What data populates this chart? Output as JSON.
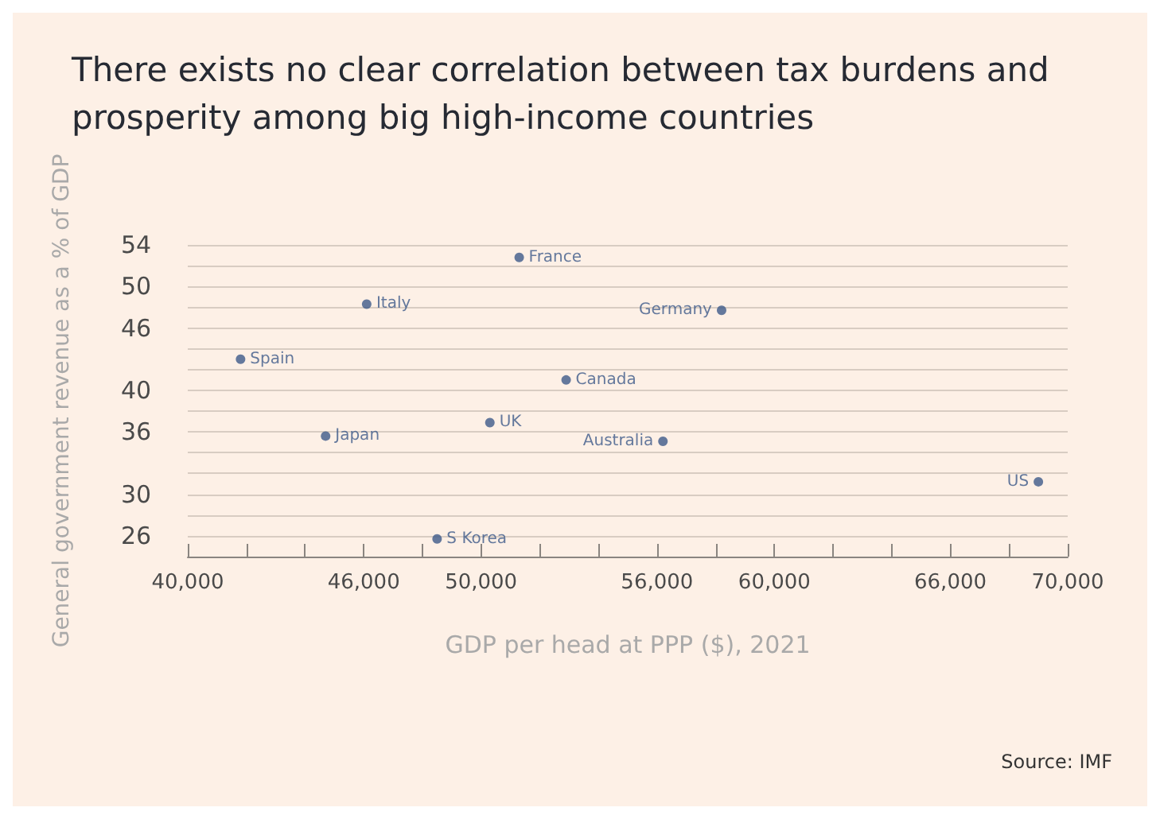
{
  "chart_data": {
    "type": "scatter",
    "title": "There exists no clear correlation between tax burdens and prosperity among big high-income countries",
    "xlabel": "GDP per head at PPP ($), 2021",
    "ylabel": "General government revenue as a % of GDP",
    "annotations": [
      "Source: IMF"
    ],
    "series": [
      {
        "name": "France",
        "color": "#3d5a8a",
        "x": [
          51300
        ],
        "values": [
          52.8
        ]
      },
      {
        "name": "Italy",
        "color": "#3d5a8a",
        "x": [
          46100
        ],
        "values": [
          48.3
        ]
      },
      {
        "name": "Germany",
        "color": "#3d5a8a",
        "x": [
          58200
        ],
        "values": [
          47.7
        ]
      },
      {
        "name": "Spain",
        "color": "#3d5a8a",
        "x": [
          41800
        ],
        "values": [
          43.0
        ]
      },
      {
        "name": "Canada",
        "color": "#3d5a8a",
        "x": [
          52900
        ],
        "values": [
          41.0
        ]
      },
      {
        "name": "UK",
        "color": "#3d5a8a",
        "x": [
          50300
        ],
        "values": [
          36.9
        ]
      },
      {
        "name": "Japan",
        "color": "#3d5a8a",
        "x": [
          44700
        ],
        "values": [
          35.6
        ]
      },
      {
        "name": "Australia",
        "color": "#3d5a8a",
        "x": [
          56200
        ],
        "values": [
          35.1
        ]
      },
      {
        "name": "US",
        "color": "#3d5a8a",
        "x": [
          69000
        ],
        "values": [
          31.2
        ]
      },
      {
        "name": "S Korea",
        "color": "#3d5a8a",
        "x": [
          48500
        ],
        "values": [
          25.7
        ]
      }
    ],
    "xlim": [
      40000,
      70000
    ],
    "xticks": [
      {
        "value": 40000,
        "label": "40,000"
      },
      {
        "value": 42000,
        "label": null
      },
      {
        "value": 44000,
        "label": null
      },
      {
        "value": 46000,
        "label": "46,000"
      },
      {
        "value": 48000,
        "label": null
      },
      {
        "value": 50000,
        "label": "50,000"
      },
      {
        "value": 52000,
        "label": null
      },
      {
        "value": 54000,
        "label": null
      },
      {
        "value": 56000,
        "label": "56,000"
      },
      {
        "value": 58000,
        "label": null
      },
      {
        "value": 60000,
        "label": "60,000"
      },
      {
        "value": 62000,
        "label": null
      },
      {
        "value": 64000,
        "label": null
      },
      {
        "value": 66000,
        "label": "66,000"
      },
      {
        "value": 68000,
        "label": null
      },
      {
        "value": 70000,
        "label": "70,000"
      }
    ],
    "ylim": [
      24,
      54
    ],
    "yticks": [
      {
        "value": 26,
        "label": "26"
      },
      {
        "value": 28,
        "label": null
      },
      {
        "value": 30,
        "label": "30"
      },
      {
        "value": 32,
        "label": null
      },
      {
        "value": 34,
        "label": null
      },
      {
        "value": 36,
        "label": "36"
      },
      {
        "value": 38,
        "label": null
      },
      {
        "value": 40,
        "label": "40"
      },
      {
        "value": 42,
        "label": null
      },
      {
        "value": 44,
        "label": null
      },
      {
        "value": 46,
        "label": "46"
      },
      {
        "value": 48,
        "label": null
      },
      {
        "value": 50,
        "label": "50"
      },
      {
        "value": 52,
        "label": null
      },
      {
        "value": 54,
        "label": "54"
      }
    ],
    "grid": "y",
    "marker": "circle",
    "legend": false
  }
}
